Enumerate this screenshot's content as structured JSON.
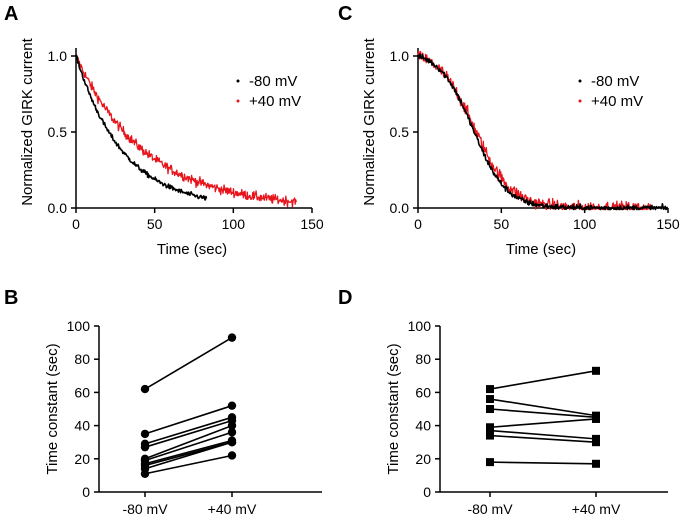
{
  "chart_data": [
    {
      "id": "A",
      "panel_label": "A",
      "type": "line",
      "xlabel": "Time (sec)",
      "ylabel": "Normalized GIRK current",
      "xlim": [
        0,
        150
      ],
      "ylim": [
        0,
        1.0
      ],
      "xticks": [
        "0",
        "50",
        "100",
        "150"
      ],
      "yticks": [
        "0.0",
        "0.5",
        "1.0"
      ],
      "legend": [
        {
          "label": "-80 mV",
          "color": "#000000"
        },
        {
          "label": "+40 mV",
          "color": "#e8141c"
        }
      ],
      "series": [
        {
          "name": "-80 mV",
          "color": "#000000",
          "model": "exp",
          "tau": 30,
          "y0": 1.0,
          "x_start": 0,
          "x_end": 83,
          "noise": 0.015
        },
        {
          "name": "+40 mV",
          "color": "#e8141c",
          "model": "exp",
          "tau": 44,
          "y0": 1.0,
          "x_start": 0,
          "x_end": 140,
          "noise": 0.03
        }
      ]
    },
    {
      "id": "C",
      "panel_label": "C",
      "type": "line",
      "xlabel": "Time (sec)",
      "ylabel": "Normalized GIRK current",
      "xlim": [
        0,
        150
      ],
      "ylim": [
        0,
        1.0
      ],
      "xticks": [
        "0",
        "50",
        "100",
        "150"
      ],
      "yticks": [
        "0.0",
        "0.5",
        "1.0"
      ],
      "legend": [
        {
          "label": "-80 mV",
          "color": "#000000"
        },
        {
          "label": "+40 mV",
          "color": "#e8141c"
        }
      ],
      "series": [
        {
          "name": "-80 mV",
          "color": "#000000",
          "model": "sigmoid",
          "x50": 33,
          "k": 10,
          "x_start": 0,
          "x_end": 150,
          "noise": 0.018
        },
        {
          "name": "+40 mV",
          "color": "#e8141c",
          "model": "sigmoid",
          "x50": 34,
          "k": 11,
          "x_start": 0,
          "x_end": 140,
          "noise": 0.04
        }
      ]
    },
    {
      "id": "B",
      "panel_label": "B",
      "type": "scatter",
      "marker": "circle",
      "ylabel": "Time constant  (sec)",
      "categories": [
        "-80 mV",
        "+40 mV"
      ],
      "ylim": [
        0,
        100
      ],
      "yticks": [
        "0",
        "20",
        "40",
        "60",
        "80",
        "100"
      ],
      "pairs": [
        [
          62,
          93
        ],
        [
          35,
          52
        ],
        [
          29,
          45
        ],
        [
          27,
          43
        ],
        [
          20,
          40
        ],
        [
          19,
          36
        ],
        [
          17,
          31
        ],
        [
          16,
          30
        ],
        [
          14,
          30
        ],
        [
          11,
          22
        ]
      ]
    },
    {
      "id": "D",
      "panel_label": "D",
      "type": "scatter",
      "marker": "square",
      "ylabel": "Time constant  (sec)",
      "categories": [
        "-80 mV",
        "+40 mV"
      ],
      "ylim": [
        0,
        100
      ],
      "yticks": [
        "0",
        "20",
        "40",
        "60",
        "80",
        "100"
      ],
      "pairs": [
        [
          62,
          73
        ],
        [
          56,
          46
        ],
        [
          50,
          45
        ],
        [
          39,
          44
        ],
        [
          37,
          32
        ],
        [
          34,
          30
        ],
        [
          18,
          17
        ]
      ]
    }
  ]
}
